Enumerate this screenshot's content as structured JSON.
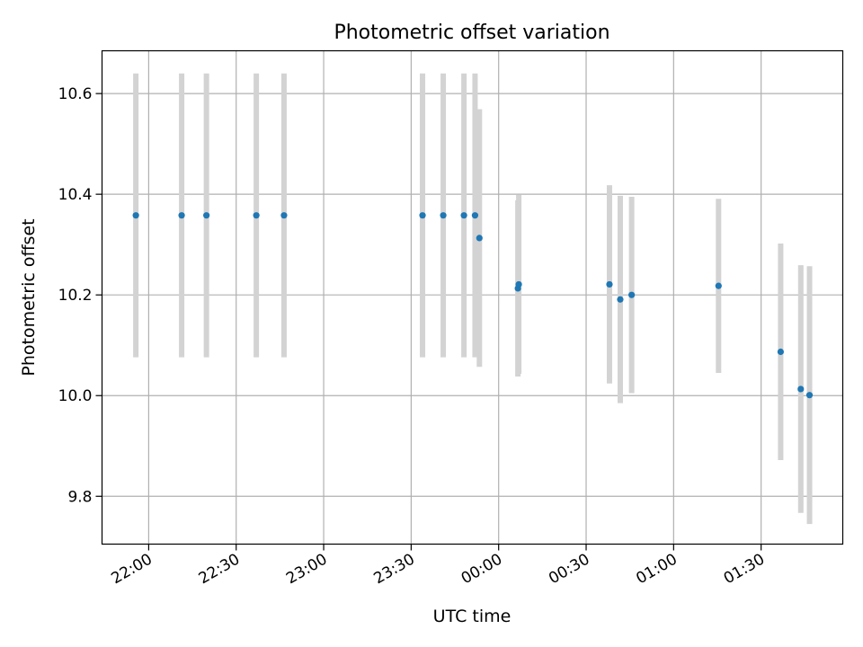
{
  "chart_data": {
    "type": "scatter",
    "title": "Photometric offset variation",
    "xlabel": "UTC time",
    "ylabel": "Photometric offset",
    "x_unit": "minutes",
    "x_ticks": [
      {
        "value": 0,
        "label": "22:00"
      },
      {
        "value": 30,
        "label": "22:30"
      },
      {
        "value": 60,
        "label": "23:00"
      },
      {
        "value": 90,
        "label": "23:30"
      },
      {
        "value": 120,
        "label": "00:00"
      },
      {
        "value": 150,
        "label": "00:30"
      },
      {
        "value": 180,
        "label": "01:00"
      },
      {
        "value": 210,
        "label": "01:30"
      }
    ],
    "y_ticks": [
      {
        "value": 9.8,
        "label": "9.8"
      },
      {
        "value": 10.0,
        "label": "10.0"
      },
      {
        "value": 10.2,
        "label": "10.2"
      },
      {
        "value": 10.4,
        "label": "10.4"
      },
      {
        "value": 10.6,
        "label": "10.6"
      }
    ],
    "xlim": [
      -16,
      238
    ],
    "ylim": [
      9.705,
      10.685
    ],
    "grid": true,
    "marker_color": "#1f77b4",
    "errorbar_color": "#d3d3d3",
    "points": [
      {
        "x": -4.4,
        "y": 10.358,
        "err": 0.282
      },
      {
        "x": 11.3,
        "y": 10.358,
        "err": 0.282
      },
      {
        "x": 19.8,
        "y": 10.358,
        "err": 0.282
      },
      {
        "x": 36.9,
        "y": 10.358,
        "err": 0.282
      },
      {
        "x": 46.4,
        "y": 10.358,
        "err": 0.282
      },
      {
        "x": 93.9,
        "y": 10.358,
        "err": 0.282
      },
      {
        "x": 101.0,
        "y": 10.358,
        "err": 0.282
      },
      {
        "x": 108.1,
        "y": 10.358,
        "err": 0.282
      },
      {
        "x": 111.9,
        "y": 10.358,
        "err": 0.282
      },
      {
        "x": 113.4,
        "y": 10.313,
        "err": 0.256
      },
      {
        "x": 126.6,
        "y": 10.213,
        "err": 0.175
      },
      {
        "x": 126.9,
        "y": 10.221,
        "err": 0.178
      },
      {
        "x": 158.0,
        "y": 10.221,
        "err": 0.197
      },
      {
        "x": 161.7,
        "y": 10.191,
        "err": 0.206
      },
      {
        "x": 165.6,
        "y": 10.2,
        "err": 0.195
      },
      {
        "x": 195.4,
        "y": 10.218,
        "err": 0.173
      },
      {
        "x": 216.7,
        "y": 10.087,
        "err": 0.215
      },
      {
        "x": 223.6,
        "y": 10.013,
        "err": 0.246
      },
      {
        "x": 226.6,
        "y": 10.001,
        "err": 0.256
      }
    ]
  }
}
